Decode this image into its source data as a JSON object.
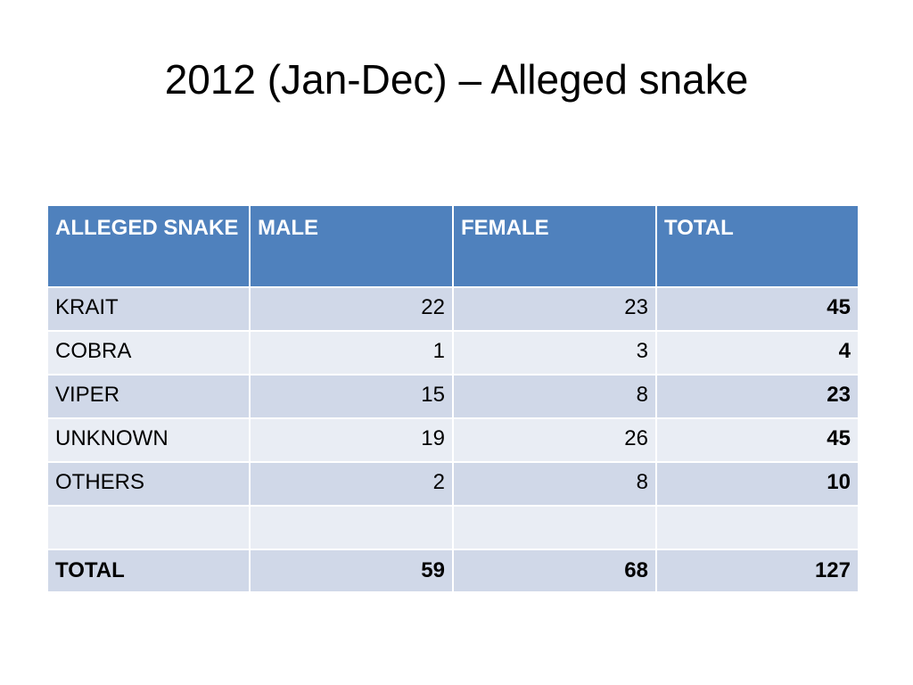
{
  "title": "2012 (Jan-Dec) – Alleged snake",
  "table": {
    "header": [
      "ALLEGED SNAKE",
      "MALE",
      "FEMALE",
      "TOTAL"
    ],
    "rows": [
      [
        "KRAIT",
        22,
        23,
        45
      ],
      [
        "COBRA",
        1,
        3,
        4
      ],
      [
        "VIPER",
        15,
        8,
        23
      ],
      [
        "UNKNOWN",
        19,
        26,
        45
      ],
      [
        "OTHERS",
        2,
        8,
        10
      ]
    ],
    "total": [
      "TOTAL",
      59,
      68,
      127
    ]
  }
}
